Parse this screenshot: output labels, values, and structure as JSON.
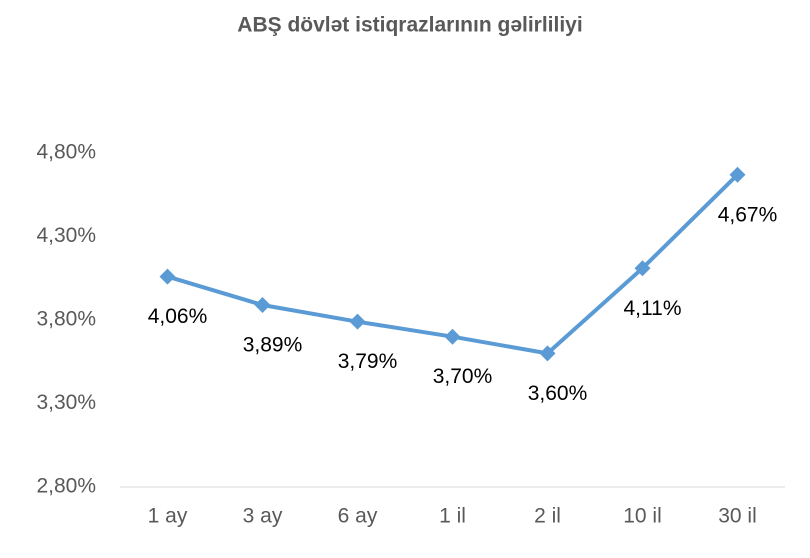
{
  "chart_data": {
    "type": "line",
    "title": "ABŞ dövlət istiqrazlarının gəlirliliyi",
    "categories": [
      "1 ay",
      "3 ay",
      "6 ay",
      "1 il",
      "2 il",
      "10 il",
      "30 il"
    ],
    "values": [
      4.06,
      3.89,
      3.79,
      3.7,
      3.6,
      4.11,
      4.67
    ],
    "value_labels": [
      "4,06%",
      "3,89%",
      "3,79%",
      "3,70%",
      "3,60%",
      "4,11%",
      "4,67%"
    ],
    "color": "#5b9bd5",
    "ylim": [
      2.8,
      4.8
    ],
    "yticks": [
      {
        "value": 2.8,
        "label": "2,80%"
      },
      {
        "value": 3.3,
        "label": "3,30%"
      },
      {
        "value": 3.8,
        "label": "3,80%"
      },
      {
        "value": 4.3,
        "label": "4,30%"
      },
      {
        "value": 4.8,
        "label": "4,80%"
      }
    ],
    "grid": false
  }
}
